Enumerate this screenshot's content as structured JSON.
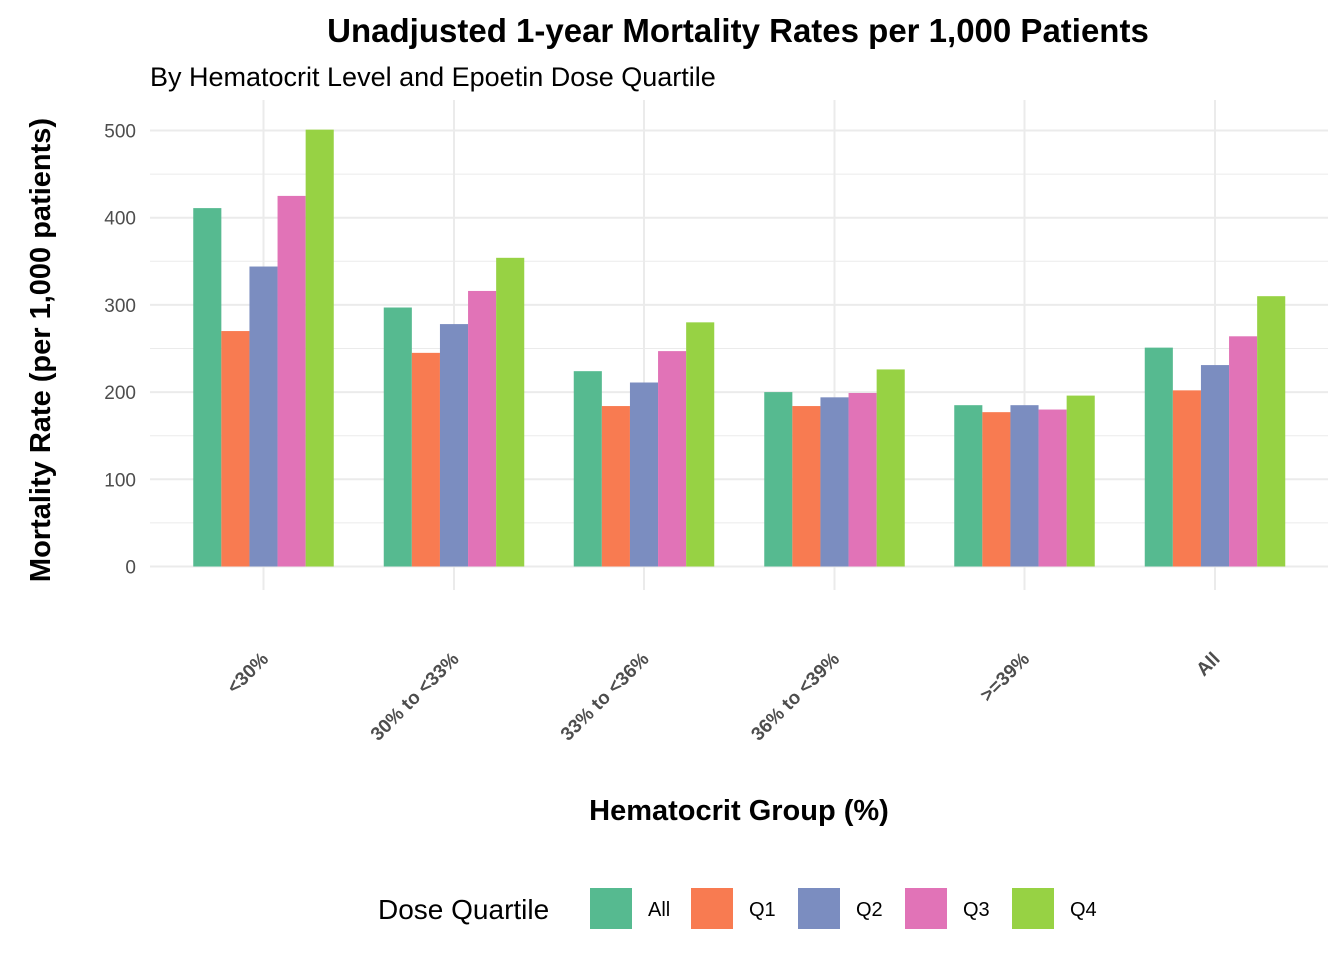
{
  "chart_data": {
    "type": "bar",
    "title": "Unadjusted 1-year Mortality Rates per 1,000 Patients",
    "subtitle": "By Hematocrit Level and Epoetin Dose Quartile",
    "xlabel": "Hematocrit Group (%)",
    "ylabel": "Mortality Rate (per 1,000 patients)",
    "ylim": [
      0,
      525
    ],
    "yticks": [
      "0",
      "100",
      "200",
      "300",
      "400",
      "500"
    ],
    "grid": true,
    "legend_title": "Dose Quartile",
    "legend_position": "bottom",
    "categories": [
      "<30%",
      "30% to <33%",
      "33% to <36%",
      "36% to <39%",
      ">=39%",
      "All"
    ],
    "series": [
      {
        "name": "All",
        "color": "#56BA90",
        "values": [
          411,
          297,
          224,
          200,
          185,
          251
        ]
      },
      {
        "name": "Q1",
        "color": "#F87B51",
        "values": [
          270,
          245,
          184,
          184,
          177,
          202
        ]
      },
      {
        "name": "Q2",
        "color": "#7B8DC0",
        "values": [
          344,
          278,
          211,
          194,
          185,
          231
        ]
      },
      {
        "name": "Q3",
        "color": "#E173B7",
        "values": [
          425,
          316,
          247,
          199,
          180,
          264
        ]
      },
      {
        "name": "Q4",
        "color": "#97D244",
        "values": [
          501,
          354,
          280,
          226,
          196,
          310
        ]
      }
    ]
  }
}
